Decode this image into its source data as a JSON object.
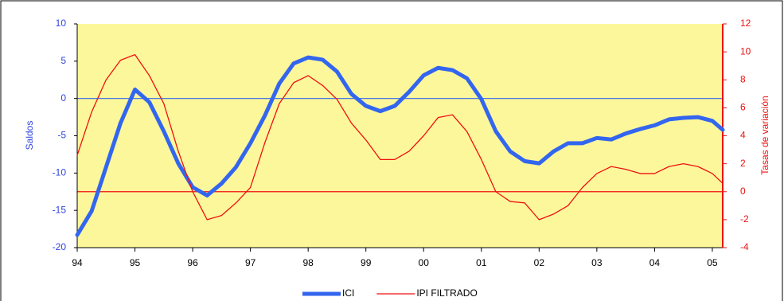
{
  "chart_data": {
    "type": "line",
    "y_label": "Saldos",
    "y2_label": "Tasas de variación",
    "background": "#fdf79b",
    "x": [
      1994,
      1994.25,
      1994.5,
      1994.75,
      1995,
      1995.25,
      1995.5,
      1995.75,
      1996,
      1996.25,
      1996.5,
      1996.75,
      1997,
      1997.25,
      1997.5,
      1997.75,
      1998,
      1998.25,
      1998.5,
      1998.75,
      1999,
      1999.25,
      1999.5,
      1999.75,
      2000,
      2000.25,
      2000.5,
      2000.75,
      2001,
      2001.25,
      2001.5,
      2001.75,
      2002,
      2002.25,
      2002.5,
      2002.75,
      2003,
      2003.25,
      2003.5,
      2003.75,
      2004,
      2004.25,
      2004.5,
      2004.75,
      2005,
      2005.18
    ],
    "series": [
      {
        "name": "ICI",
        "color": "#3366ee",
        "width": 5,
        "axis": "y",
        "values": [
          -18.3,
          -15.1,
          -9.2,
          -3.3,
          1.2,
          -0.5,
          -4.4,
          -8.7,
          -11.9,
          -13.0,
          -11.4,
          -9.2,
          -6.0,
          -2.3,
          2.0,
          4.7,
          5.5,
          5.2,
          3.6,
          0.6,
          -1.0,
          -1.7,
          -1.0,
          0.9,
          3.1,
          4.1,
          3.8,
          2.7,
          -0.1,
          -4.4,
          -7.1,
          -8.4,
          -8.7,
          -7.1,
          -6.0,
          -6.0,
          -5.3,
          -5.5,
          -4.7,
          -4.1,
          -3.6,
          -2.8,
          -2.6,
          -2.5,
          -3.0,
          -4.2
        ]
      },
      {
        "name": "IPI FILTRADO",
        "color": "#ee1111",
        "width": 1.3,
        "axis": "y2",
        "values": [
          2.6,
          5.7,
          8.0,
          9.4,
          9.8,
          8.3,
          6.3,
          2.9,
          0.0,
          -2.0,
          -1.7,
          -0.8,
          0.3,
          3.5,
          6.3,
          7.8,
          8.3,
          7.6,
          6.6,
          4.9,
          3.7,
          2.3,
          2.3,
          2.9,
          4.0,
          5.3,
          5.5,
          4.3,
          2.3,
          0.0,
          -0.7,
          -0.8,
          -2.0,
          -1.6,
          -1.0,
          0.3,
          1.3,
          1.8,
          1.6,
          1.3,
          1.3,
          1.8,
          2.0,
          1.8,
          1.3,
          0.6
        ]
      }
    ],
    "hlines": [
      {
        "axis": "y",
        "value": 0,
        "color": "#3366ee"
      },
      {
        "axis": "y2",
        "value": 0,
        "color": "#ee1111"
      }
    ],
    "xlim": [
      1994,
      2005.18
    ],
    "xticks": [
      {
        "value": 1994,
        "label": "94"
      },
      {
        "value": 1995,
        "label": "95"
      },
      {
        "value": 1996,
        "label": "96"
      },
      {
        "value": 1997,
        "label": "97"
      },
      {
        "value": 1998,
        "label": "98"
      },
      {
        "value": 1999,
        "label": "99"
      },
      {
        "value": 2000,
        "label": "00"
      },
      {
        "value": 2001,
        "label": "01"
      },
      {
        "value": 2002,
        "label": "02"
      },
      {
        "value": 2003,
        "label": "03"
      },
      {
        "value": 2004,
        "label": "04"
      },
      {
        "value": 2005,
        "label": "05"
      }
    ],
    "ylim": [
      -20,
      10
    ],
    "yticks": [
      -20,
      -15,
      -10,
      -5,
      0,
      5,
      10
    ],
    "y2lim": [
      -4,
      12
    ],
    "y2ticks": [
      -4,
      -2,
      0,
      2,
      4,
      6,
      8,
      10,
      12
    ]
  }
}
